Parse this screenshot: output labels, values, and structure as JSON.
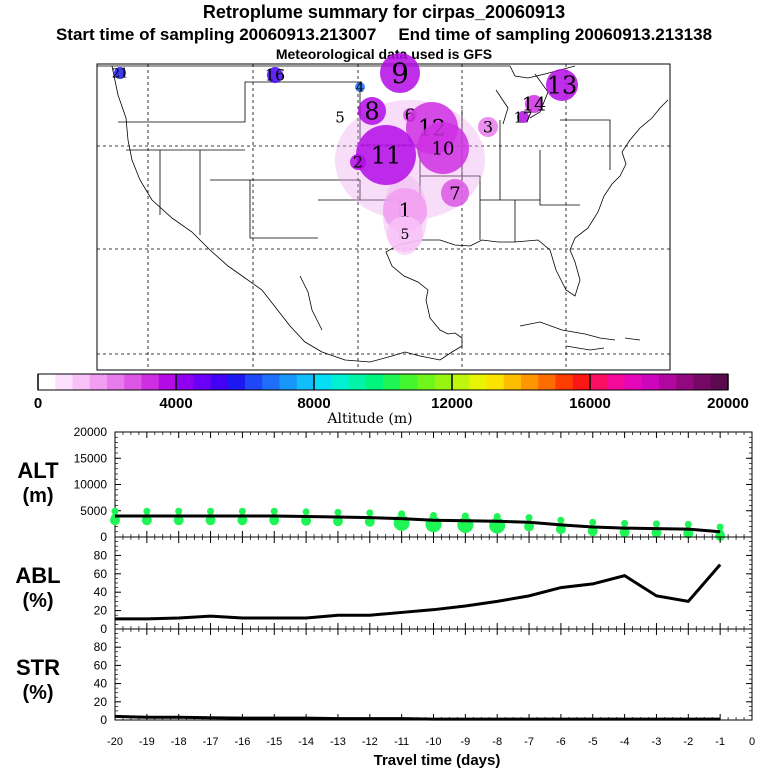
{
  "header": {
    "title": "Retroplume summary for cirpas_20060913",
    "start_label": "Start time of sampling 20060913.213007",
    "end_label": "End time of sampling 20060913.213138",
    "met_label": "Meteorological data used is GFS"
  },
  "colorbar": {
    "label": "Altitude (m)",
    "ticks": [
      "0",
      "4000",
      "8000",
      "12000",
      "16000",
      "20000"
    ],
    "colors": [
      "#ffffff",
      "#fde0fd",
      "#f8c2f8",
      "#f19df2",
      "#e77beb",
      "#dc57e6",
      "#cf2fe3",
      "#b40ae6",
      "#9000f0",
      "#6a00f5",
      "#4400f5",
      "#1d18f2",
      "#1f47f5",
      "#1d6ef8",
      "#1897fa",
      "#0fbefa",
      "#06def5",
      "#00f0d4",
      "#00f5a9",
      "#00f57e",
      "#1ff555",
      "#45f52e",
      "#6ef51a",
      "#98f512",
      "#c0f50c",
      "#e7f505",
      "#fbe300",
      "#fdbe00",
      "#fd9600",
      "#fd6c00",
      "#fd3d00",
      "#fb1616",
      "#fa1063",
      "#f5099a",
      "#e606ba",
      "#cd06bd",
      "#b0079e",
      "#920880",
      "#740864",
      "#5c0a4e"
    ]
  },
  "map_markers": [
    {
      "label": "21",
      "color": "#1d18f2"
    },
    {
      "label": "16",
      "color": "#4400f5"
    },
    {
      "label": "9",
      "color": "#b40ae6"
    },
    {
      "label": "4",
      "color": "#1d6ef8"
    },
    {
      "label": "8",
      "color": "#b40ae6"
    },
    {
      "label": "5",
      "color": "#6a00f5"
    },
    {
      "label": "6",
      "color": "#dc57e6"
    },
    {
      "label": "13",
      "color": "#b40ae6"
    },
    {
      "label": "14",
      "color": "#cf2fe3"
    },
    {
      "label": "17",
      "color": "#b40ae6"
    },
    {
      "label": "3",
      "color": "#e77beb"
    },
    {
      "label": "12",
      "color": "#cf2fe3"
    },
    {
      "label": "10",
      "color": "#cf2fe3"
    },
    {
      "label": "11",
      "color": "#b40ae6"
    },
    {
      "label": "2",
      "color": "#b40ae6"
    },
    {
      "label": "7",
      "color": "#dc57e6"
    },
    {
      "label": "1",
      "color": "#f19df2"
    },
    {
      "label": "5",
      "color": "#f8c2f8"
    }
  ],
  "chart_data": [
    {
      "type": "line",
      "panel": "ALT",
      "title": "ALT",
      "ylabel": "(m)",
      "x": [
        -20,
        -19,
        -18,
        -17,
        -16,
        -15,
        -14,
        -13,
        -12,
        -11,
        -10,
        -9,
        -8,
        -7,
        -6,
        -5,
        -4,
        -3,
        -2,
        -1
      ],
      "values": [
        4000,
        4000,
        4000,
        4000,
        4000,
        4000,
        3900,
        3800,
        3700,
        3500,
        3200,
        3100,
        3000,
        2800,
        2300,
        1900,
        1700,
        1600,
        1500,
        1000
      ],
      "ylim": [
        0,
        20000
      ],
      "y_ticks": [
        "0",
        "5000",
        "10000",
        "15000",
        "20000"
      ],
      "scatter_color": "#1ff555"
    },
    {
      "type": "line",
      "panel": "ABL",
      "title": "ABL",
      "ylabel": "(%)",
      "x": [
        -20,
        -19,
        -18,
        -17,
        -16,
        -15,
        -14,
        -13,
        -12,
        -11,
        -10,
        -9,
        -8,
        -7,
        -6,
        -5,
        -4,
        -3,
        -2,
        -1
      ],
      "values": [
        11,
        11,
        12,
        14,
        12,
        12,
        12,
        15,
        15,
        18,
        21,
        25,
        30,
        36,
        45,
        49,
        58,
        36,
        30,
        70
      ],
      "ylim": [
        0,
        100
      ],
      "y_ticks": [
        "0",
        "20",
        "40",
        "60",
        "80"
      ]
    },
    {
      "type": "line",
      "panel": "STR",
      "title": "STR",
      "ylabel": "(%)",
      "x": [
        -20,
        -19,
        -18,
        -17,
        -16,
        -15,
        -14,
        -13,
        -12,
        -11,
        -10,
        -9,
        -8,
        -7,
        -6,
        -5,
        -4,
        -3,
        -2,
        -1
      ],
      "values": [
        4,
        3,
        3,
        2.5,
        2,
        2,
        2,
        1.5,
        1.5,
        1.5,
        1,
        1,
        1,
        1,
        1,
        1,
        1,
        1,
        1,
        1
      ],
      "ylim": [
        0,
        100
      ],
      "y_ticks": [
        "0",
        "20",
        "40",
        "60",
        "80"
      ]
    }
  ],
  "xaxis": {
    "label": "Travel time (days)",
    "ticks": [
      "-20",
      "-19",
      "-18",
      "-17",
      "-16",
      "-15",
      "-14",
      "-13",
      "-12",
      "-11",
      "-10",
      "-9",
      "-8",
      "-7",
      "-6",
      "-5",
      "-4",
      "-3",
      "-2",
      "-1",
      "0"
    ]
  }
}
